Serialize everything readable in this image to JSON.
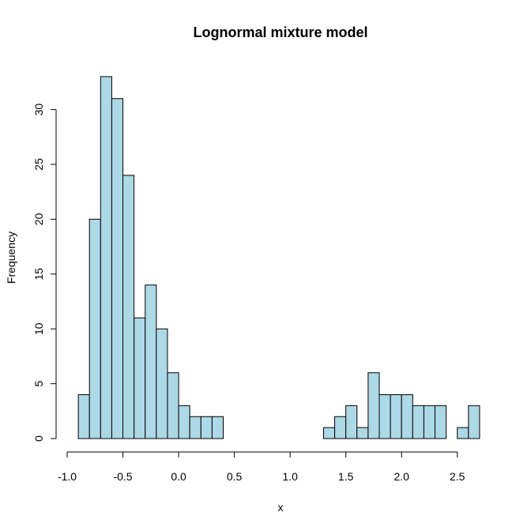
{
  "chart_data": {
    "type": "bar",
    "title": "Lognormal mixture model",
    "xlabel": "x",
    "ylabel": "Frequency",
    "bar_color": "#add8e6",
    "bar_edge_color": "#000000",
    "xlim": [
      -0.9,
      2.7
    ],
    "ylim": [
      0,
      33
    ],
    "bin_width": 0.1,
    "x_ticks": [
      -1.0,
      -0.5,
      0.0,
      0.5,
      1.0,
      1.5,
      2.0,
      2.5
    ],
    "x_tick_labels": [
      "-1.0",
      "-0.5",
      "0.0",
      "0.5",
      "1.0",
      "1.5",
      "2.0",
      "2.5"
    ],
    "y_ticks": [
      0,
      5,
      10,
      15,
      20,
      25,
      30
    ],
    "y_tick_labels": [
      "0",
      "5",
      "10",
      "15",
      "20",
      "25",
      "30"
    ],
    "bins": [
      {
        "x0": -0.9,
        "x1": -0.8,
        "count": 4
      },
      {
        "x0": -0.8,
        "x1": -0.7,
        "count": 20
      },
      {
        "x0": -0.7,
        "x1": -0.6,
        "count": 33
      },
      {
        "x0": -0.6,
        "x1": -0.5,
        "count": 31
      },
      {
        "x0": -0.5,
        "x1": -0.4,
        "count": 24
      },
      {
        "x0": -0.4,
        "x1": -0.3,
        "count": 11
      },
      {
        "x0": -0.3,
        "x1": -0.2,
        "count": 14
      },
      {
        "x0": -0.2,
        "x1": -0.1,
        "count": 10
      },
      {
        "x0": -0.1,
        "x1": 0.0,
        "count": 6
      },
      {
        "x0": 0.0,
        "x1": 0.1,
        "count": 3
      },
      {
        "x0": 0.1,
        "x1": 0.2,
        "count": 2
      },
      {
        "x0": 0.2,
        "x1": 0.3,
        "count": 2
      },
      {
        "x0": 0.3,
        "x1": 0.4,
        "count": 2
      },
      {
        "x0": 0.4,
        "x1": 0.5,
        "count": 0
      },
      {
        "x0": 0.5,
        "x1": 0.6,
        "count": 0
      },
      {
        "x0": 0.6,
        "x1": 0.7,
        "count": 0
      },
      {
        "x0": 0.7,
        "x1": 0.8,
        "count": 0
      },
      {
        "x0": 0.8,
        "x1": 0.9,
        "count": 0
      },
      {
        "x0": 0.9,
        "x1": 1.0,
        "count": 0
      },
      {
        "x0": 1.0,
        "x1": 1.1,
        "count": 0
      },
      {
        "x0": 1.1,
        "x1": 1.2,
        "count": 0
      },
      {
        "x0": 1.2,
        "x1": 1.3,
        "count": 0
      },
      {
        "x0": 1.3,
        "x1": 1.4,
        "count": 1
      },
      {
        "x0": 1.4,
        "x1": 1.5,
        "count": 2
      },
      {
        "x0": 1.5,
        "x1": 1.6,
        "count": 3
      },
      {
        "x0": 1.6,
        "x1": 1.7,
        "count": 1
      },
      {
        "x0": 1.7,
        "x1": 1.8,
        "count": 6
      },
      {
        "x0": 1.8,
        "x1": 1.9,
        "count": 4
      },
      {
        "x0": 1.9,
        "x1": 2.0,
        "count": 4
      },
      {
        "x0": 2.0,
        "x1": 2.1,
        "count": 4
      },
      {
        "x0": 2.1,
        "x1": 2.2,
        "count": 3
      },
      {
        "x0": 2.2,
        "x1": 2.3,
        "count": 3
      },
      {
        "x0": 2.3,
        "x1": 2.4,
        "count": 3
      },
      {
        "x0": 2.4,
        "x1": 2.5,
        "count": 0
      },
      {
        "x0": 2.5,
        "x1": 2.6,
        "count": 1
      },
      {
        "x0": 2.6,
        "x1": 2.7,
        "count": 3
      }
    ],
    "grid": false,
    "legend": "none"
  }
}
